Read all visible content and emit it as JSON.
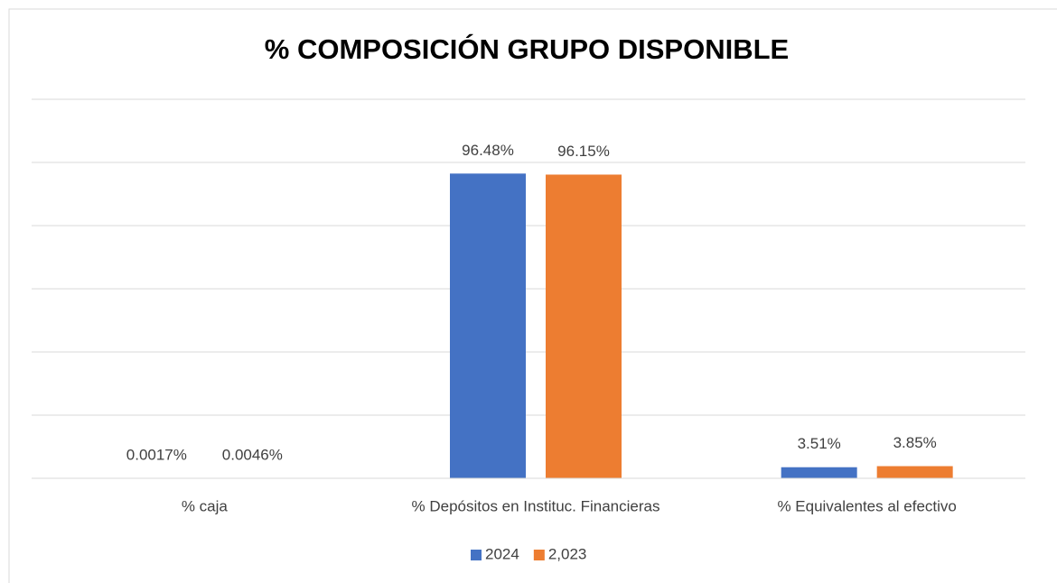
{
  "chart_data": {
    "type": "bar",
    "title": "% COMPOSICIÓN GRUPO DISPONIBLE",
    "categories": [
      "% caja",
      "% Depósitos en Instituc. Financieras",
      "% Equivalentes al efectivo"
    ],
    "series": [
      {
        "name": "2024",
        "color": "#4472c4",
        "values": [
          0.0017,
          96.48,
          3.51
        ],
        "value_labels": [
          "0.0017%",
          "96.48%",
          "3.51%"
        ]
      },
      {
        "name": "2,023",
        "color": "#ed7d31",
        "values": [
          0.0046,
          96.15,
          3.85
        ],
        "value_labels": [
          "0.0046%",
          "96.15%",
          "3.85%"
        ]
      }
    ],
    "ylim": [
      0,
      120
    ],
    "yticks": [
      0,
      20,
      40,
      60,
      80,
      100,
      120
    ],
    "grid": true,
    "legend": "bottom"
  }
}
